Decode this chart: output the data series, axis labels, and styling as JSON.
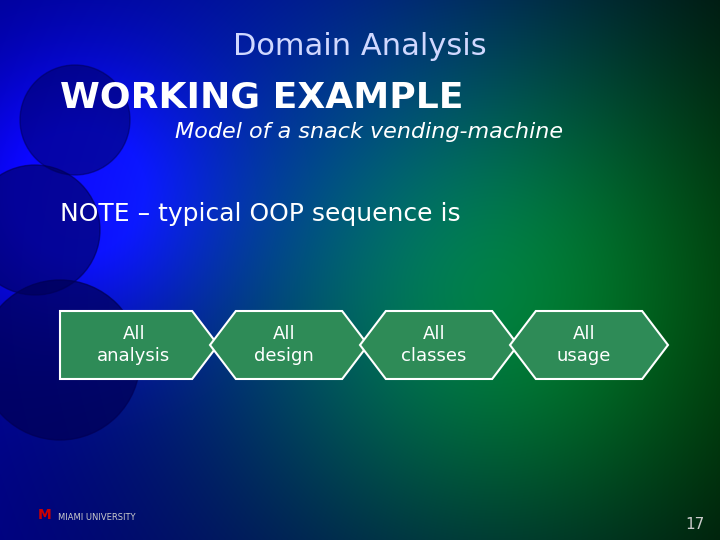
{
  "title": "Domain Analysis",
  "title_color": "#d0d8ff",
  "title_fontsize": 22,
  "working_example_text": "WORKING EXAMPLE",
  "working_example_color": "#ffffff",
  "working_example_fontsize": 26,
  "subtitle_text": "Model of a snack vending-machine",
  "subtitle_color": "#ffffff",
  "subtitle_fontsize": 16,
  "note_text": "NOTE – typical OOP sequence is",
  "note_color": "#ffffff",
  "note_fontsize": 18,
  "arrow_labels": [
    "All\nanalysis",
    "All\ndesign",
    "All\nclasses",
    "All\nusage"
  ],
  "arrow_color": "#2e8b57",
  "arrow_text_color": "#ffffff",
  "arrow_text_fontsize": 13,
  "arrow_border_color": "#ffffff",
  "page_number": "17",
  "page_number_color": "#cccccc",
  "logo_text": "MIAMI UNIVERSITY",
  "logo_color": "#cccccc"
}
